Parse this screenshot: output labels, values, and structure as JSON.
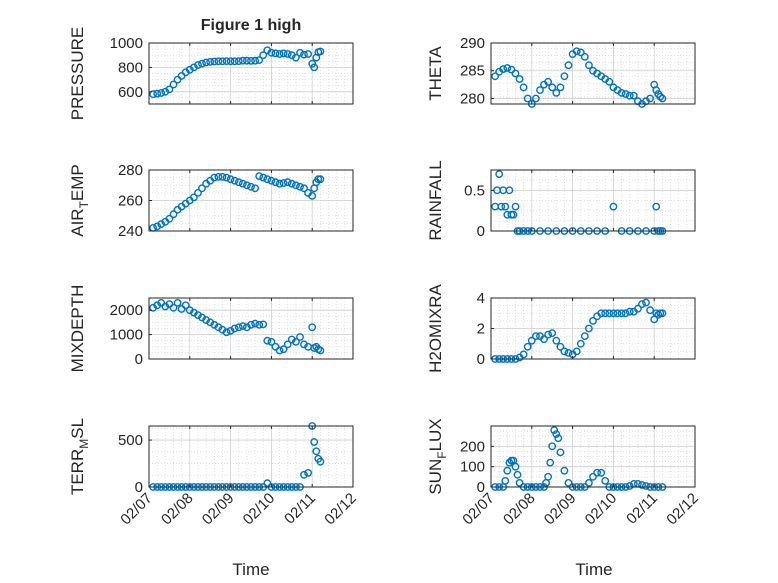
{
  "figure": {
    "title": "Figure 1 high",
    "xlabel": "Time"
  },
  "chart_data": [
    {
      "type": "scatter",
      "ylabel": "PRESSURE",
      "ylim": [
        500,
        1000
      ],
      "yticks": [
        600,
        800,
        1000
      ],
      "xlim": [
        0,
        5
      ],
      "xticks": [
        "02/07",
        "02/08",
        "02/09",
        "02/10",
        "02/11",
        "02/12"
      ],
      "grid": true,
      "x": [
        0.1,
        0.2,
        0.3,
        0.4,
        0.5,
        0.6,
        0.7,
        0.8,
        0.9,
        1.0,
        1.1,
        1.2,
        1.3,
        1.4,
        1.5,
        1.6,
        1.7,
        1.8,
        1.9,
        2.0,
        2.1,
        2.2,
        2.3,
        2.4,
        2.5,
        2.6,
        2.7,
        2.8,
        2.9,
        3.0,
        3.1,
        3.2,
        3.3,
        3.4,
        3.5,
        3.6,
        3.7,
        3.8,
        3.9,
        4.0,
        4.05,
        4.1,
        4.15,
        4.2
      ],
      "y": [
        580,
        585,
        590,
        600,
        620,
        660,
        700,
        730,
        760,
        780,
        800,
        820,
        830,
        840,
        845,
        848,
        850,
        850,
        852,
        850,
        850,
        852,
        855,
        855,
        853,
        855,
        860,
        900,
        940,
        920,
        915,
        910,
        915,
        910,
        900,
        880,
        920,
        905,
        910,
        830,
        800,
        880,
        925,
        930
      ]
    },
    {
      "type": "scatter",
      "ylabel": "THETA",
      "ylim": [
        279,
        290
      ],
      "yticks": [
        280,
        285,
        290
      ],
      "xlim": [
        0,
        5
      ],
      "xticks": [
        "02/07",
        "02/08",
        "02/09",
        "02/10",
        "02/11",
        "02/12"
      ],
      "grid": true,
      "x": [
        0.1,
        0.2,
        0.3,
        0.4,
        0.5,
        0.6,
        0.7,
        0.8,
        0.9,
        1.0,
        1.1,
        1.2,
        1.3,
        1.4,
        1.5,
        1.6,
        1.7,
        1.8,
        1.9,
        2.0,
        2.1,
        2.2,
        2.3,
        2.4,
        2.5,
        2.6,
        2.7,
        2.8,
        2.9,
        3.0,
        3.1,
        3.2,
        3.3,
        3.4,
        3.5,
        3.6,
        3.7,
        3.8,
        3.9,
        4.0,
        4.05,
        4.1,
        4.15,
        4.2
      ],
      "y": [
        284,
        284.8,
        285.3,
        285.5,
        285.2,
        284.5,
        283.5,
        282,
        280,
        279,
        280,
        281.5,
        282.5,
        283,
        282,
        281,
        282,
        284,
        286,
        288,
        288.5,
        288.3,
        287.5,
        286,
        285,
        284.5,
        284,
        283.5,
        283,
        282,
        281.5,
        281,
        280.8,
        280.5,
        280.5,
        279.5,
        279,
        279.5,
        280,
        282.5,
        281.5,
        280.8,
        280.3,
        280
      ]
    },
    {
      "type": "scatter",
      "ylabel": "AIR_TEMP",
      "ylim": [
        240,
        280
      ],
      "yticks": [
        240,
        260,
        280
      ],
      "xlim": [
        0,
        5
      ],
      "xticks": [
        "02/07",
        "02/08",
        "02/09",
        "02/10",
        "02/11",
        "02/12"
      ],
      "grid": true,
      "x": [
        0.1,
        0.2,
        0.3,
        0.4,
        0.5,
        0.6,
        0.7,
        0.8,
        0.9,
        1.0,
        1.1,
        1.2,
        1.3,
        1.4,
        1.5,
        1.6,
        1.7,
        1.8,
        1.9,
        2.0,
        2.1,
        2.2,
        2.3,
        2.4,
        2.5,
        2.6,
        2.7,
        2.8,
        2.9,
        3.0,
        3.1,
        3.2,
        3.3,
        3.4,
        3.5,
        3.6,
        3.7,
        3.8,
        3.9,
        4.0,
        4.05,
        4.1,
        4.15,
        4.2
      ],
      "y": [
        242,
        243,
        244.5,
        246,
        248,
        251,
        254,
        256,
        258,
        260,
        262,
        265,
        268,
        271,
        273,
        275,
        275.5,
        275.5,
        275,
        274,
        273,
        272,
        271,
        270,
        269,
        268,
        276,
        275,
        274,
        273,
        272,
        271,
        271.5,
        272,
        271,
        270,
        269,
        268,
        265,
        263,
        268,
        272,
        274,
        274
      ]
    },
    {
      "type": "scatter",
      "ylabel": "RAINFALL",
      "ylim": [
        0,
        0.75
      ],
      "yticks": [
        0,
        0.5
      ],
      "xlim": [
        0,
        5
      ],
      "xticks": [
        "02/07",
        "02/08",
        "02/09",
        "02/10",
        "02/11",
        "02/12"
      ],
      "grid": true,
      "x": [
        0.1,
        0.15,
        0.2,
        0.25,
        0.3,
        0.35,
        0.4,
        0.45,
        0.5,
        0.55,
        0.6,
        0.65,
        0.7,
        0.8,
        0.9,
        1.0,
        1.2,
        1.4,
        1.6,
        1.8,
        2.0,
        2.2,
        2.4,
        2.6,
        2.8,
        3.0,
        3.2,
        3.4,
        3.6,
        3.8,
        4.0,
        4.05,
        4.1,
        4.15,
        4.2
      ],
      "y": [
        0.3,
        0.5,
        0.7,
        0.3,
        0.5,
        0.3,
        0.2,
        0.5,
        0.2,
        0.2,
        0.3,
        0,
        0,
        0,
        0,
        0,
        0,
        0,
        0,
        0,
        0,
        0,
        0,
        0,
        0,
        0.3,
        0,
        0,
        0,
        0,
        0,
        0.3,
        0,
        0,
        0
      ]
    },
    {
      "type": "scatter",
      "ylabel": "MIXDEPTH",
      "ylim": [
        0,
        2500
      ],
      "yticks": [
        0,
        1000,
        2000
      ],
      "xlim": [
        0,
        5
      ],
      "xticks": [
        "02/07",
        "02/08",
        "02/09",
        "02/10",
        "02/11",
        "02/12"
      ],
      "grid": true,
      "x": [
        0.1,
        0.2,
        0.3,
        0.4,
        0.5,
        0.6,
        0.7,
        0.8,
        0.9,
        1.0,
        1.1,
        1.2,
        1.3,
        1.4,
        1.5,
        1.6,
        1.7,
        1.8,
        1.9,
        2.0,
        2.1,
        2.2,
        2.3,
        2.4,
        2.5,
        2.6,
        2.7,
        2.8,
        2.9,
        3.0,
        3.1,
        3.2,
        3.3,
        3.4,
        3.5,
        3.6,
        3.7,
        3.8,
        3.9,
        4.0,
        4.05,
        4.1,
        4.15,
        4.2
      ],
      "y": [
        2100,
        2200,
        2300,
        2150,
        2250,
        2100,
        2300,
        2050,
        2200,
        2000,
        1900,
        1800,
        1700,
        1600,
        1500,
        1400,
        1300,
        1200,
        1100,
        1150,
        1250,
        1300,
        1350,
        1300,
        1400,
        1450,
        1400,
        1420,
        750,
        700,
        500,
        350,
        400,
        600,
        800,
        700,
        900,
        600,
        500,
        1300,
        450,
        500,
        400,
        350
      ]
    },
    {
      "type": "scatter",
      "ylabel": "H2OMIXRA",
      "ylim": [
        0,
        4
      ],
      "yticks": [
        0,
        2,
        4
      ],
      "xlim": [
        0,
        5
      ],
      "xticks": [
        "02/07",
        "02/08",
        "02/09",
        "02/10",
        "02/11",
        "02/12"
      ],
      "grid": true,
      "x": [
        0.1,
        0.2,
        0.3,
        0.4,
        0.5,
        0.6,
        0.7,
        0.8,
        0.9,
        1.0,
        1.1,
        1.2,
        1.3,
        1.4,
        1.5,
        1.6,
        1.7,
        1.8,
        1.9,
        2.0,
        2.1,
        2.2,
        2.3,
        2.4,
        2.5,
        2.6,
        2.7,
        2.8,
        2.9,
        3.0,
        3.1,
        3.2,
        3.3,
        3.4,
        3.5,
        3.6,
        3.7,
        3.8,
        3.9,
        4.0,
        4.05,
        4.1,
        4.15,
        4.2
      ],
      "y": [
        0,
        0,
        0,
        0,
        0,
        0,
        0.1,
        0.3,
        0.8,
        1.2,
        1.5,
        1.5,
        1.3,
        1.6,
        1.7,
        1.2,
        0.8,
        0.5,
        0.4,
        0.3,
        0.5,
        1.0,
        1.5,
        2.0,
        2.5,
        2.8,
        3.0,
        3.0,
        3.0,
        3.0,
        3.0,
        3.0,
        3.0,
        3.1,
        3.1,
        3.3,
        3.6,
        3.7,
        3.2,
        2.6,
        3.0,
        2.9,
        3.0,
        3.0
      ]
    },
    {
      "type": "scatter",
      "ylabel": "TERR_MSL",
      "ylim": [
        0,
        650
      ],
      "yticks": [
        0,
        500
      ],
      "xlim": [
        0,
        5
      ],
      "xticks": [
        "02/07",
        "02/08",
        "02/09",
        "02/10",
        "02/11",
        "02/12"
      ],
      "grid": true,
      "x": [
        0.1,
        0.2,
        0.3,
        0.4,
        0.5,
        0.6,
        0.7,
        0.8,
        0.9,
        1.0,
        1.1,
        1.2,
        1.3,
        1.4,
        1.5,
        1.6,
        1.7,
        1.8,
        1.9,
        2.0,
        2.1,
        2.2,
        2.3,
        2.4,
        2.5,
        2.6,
        2.7,
        2.8,
        2.9,
        3.0,
        3.1,
        3.2,
        3.3,
        3.4,
        3.5,
        3.6,
        3.7,
        3.8,
        3.9,
        4.0,
        4.05,
        4.1,
        4.15,
        4.2
      ],
      "y": [
        0,
        0,
        0,
        0,
        0,
        0,
        0,
        0,
        0,
        0,
        0,
        0,
        0,
        0,
        0,
        0,
        0,
        0,
        0,
        0,
        0,
        0,
        0,
        0,
        0,
        0,
        0,
        0,
        40,
        0,
        0,
        0,
        0,
        0,
        0,
        0,
        0,
        130,
        150,
        650,
        480,
        380,
        300,
        270
      ]
    },
    {
      "type": "scatter",
      "ylabel": "SUN_FLUX",
      "ylim": [
        0,
        300
      ],
      "yticks": [
        0,
        100,
        200
      ],
      "xlim": [
        0,
        5
      ],
      "xticks": [
        "02/07",
        "02/08",
        "02/09",
        "02/10",
        "02/11",
        "02/12"
      ],
      "grid": true,
      "x": [
        0.1,
        0.2,
        0.3,
        0.35,
        0.4,
        0.45,
        0.5,
        0.55,
        0.6,
        0.65,
        0.7,
        0.8,
        0.9,
        1.0,
        1.1,
        1.2,
        1.3,
        1.35,
        1.4,
        1.45,
        1.5,
        1.55,
        1.6,
        1.65,
        1.7,
        1.8,
        1.9,
        2.0,
        2.1,
        2.2,
        2.3,
        2.4,
        2.5,
        2.6,
        2.7,
        2.8,
        2.9,
        3.0,
        3.1,
        3.2,
        3.3,
        3.4,
        3.5,
        3.6,
        3.7,
        3.8,
        3.9,
        4.0,
        4.1,
        4.2
      ],
      "y": [
        0,
        0,
        0,
        30,
        80,
        120,
        130,
        130,
        100,
        60,
        20,
        0,
        0,
        0,
        0,
        0,
        0,
        20,
        50,
        120,
        200,
        280,
        260,
        240,
        170,
        80,
        20,
        0,
        0,
        0,
        0,
        20,
        50,
        70,
        70,
        30,
        0,
        0,
        0,
        0,
        0,
        5,
        15,
        15,
        10,
        5,
        0,
        0,
        0,
        0
      ]
    }
  ]
}
